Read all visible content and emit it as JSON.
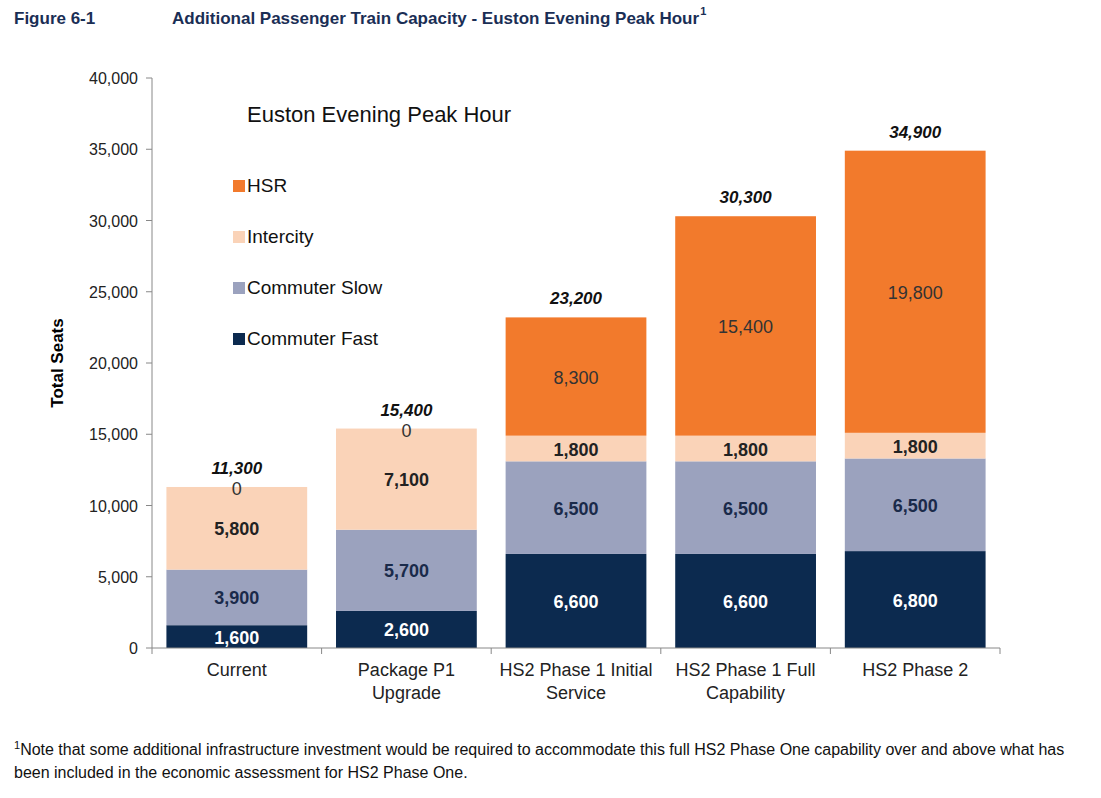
{
  "chart_data": {
    "type": "bar",
    "figure_label": "Figure 6-1",
    "title": "Additional Passenger Train Capacity - Euston Evening Peak Hour",
    "title_marker": "1",
    "subtitle": "Euston Evening Peak Hour",
    "y_label": "Total Seats",
    "footnote_marker": "1",
    "footnote": "Note that some additional infrastructure investment would be required to accommodate this full HS2 Phase One capability over and above what has been included in the economic assessment for HS2 Phase One.",
    "stacked": true,
    "data_labels": true,
    "legend": "top-left",
    "grid": false,
    "categories": [
      "Current",
      "Package P1\nUpgrade",
      "HS2 Phase 1 Initial\nService",
      "HS2 Phase 1 Full\nCapability",
      "HS2 Phase 2"
    ],
    "series": [
      {
        "name": "Commuter Fast",
        "color": "#0c2a4f",
        "values": [
          1600,
          2600,
          6600,
          6600,
          6800
        ],
        "value_labels": [
          "1,600",
          "2,600",
          "6,600",
          "6,600",
          "6,800"
        ]
      },
      {
        "name": "Commuter Slow",
        "color": "#9ba2be",
        "values": [
          3900,
          5700,
          6500,
          6500,
          6500
        ],
        "value_labels": [
          "3,900",
          "5,700",
          "6,500",
          "6,500",
          "6,500"
        ]
      },
      {
        "name": "Intercity",
        "color": "#fad3b8",
        "values": [
          5800,
          7100,
          1800,
          1800,
          1800
        ],
        "value_labels": [
          "5,800",
          "7,100",
          "1,800",
          "1,800",
          "1,800"
        ]
      },
      {
        "name": "HSR",
        "color": "#f27a2c",
        "values": [
          0,
          0,
          8300,
          15400,
          19800
        ],
        "value_labels": [
          "0",
          "0",
          "8,300",
          "15,400",
          "19,800"
        ]
      }
    ],
    "totals": [
      11300,
      15400,
      23200,
      30300,
      34900
    ],
    "total_labels": [
      "11,300",
      "15,400",
      "23,200",
      "30,300",
      "34,900"
    ],
    "ylim": [
      0,
      40000
    ],
    "yticks": [
      0,
      {
        "value": 5000,
        "label": "5,000"
      },
      {
        "value": 10000,
        "label": "10,000"
      },
      {
        "value": 15000,
        "label": "15,000"
      },
      {
        "value": 20000,
        "label": "20,000"
      },
      {
        "value": 25000,
        "label": "25,000"
      },
      {
        "value": 30000,
        "label": "30,000"
      },
      {
        "value": 35000,
        "label": "35,000"
      },
      {
        "value": 40000,
        "label": "40,000"
      }
    ]
  }
}
